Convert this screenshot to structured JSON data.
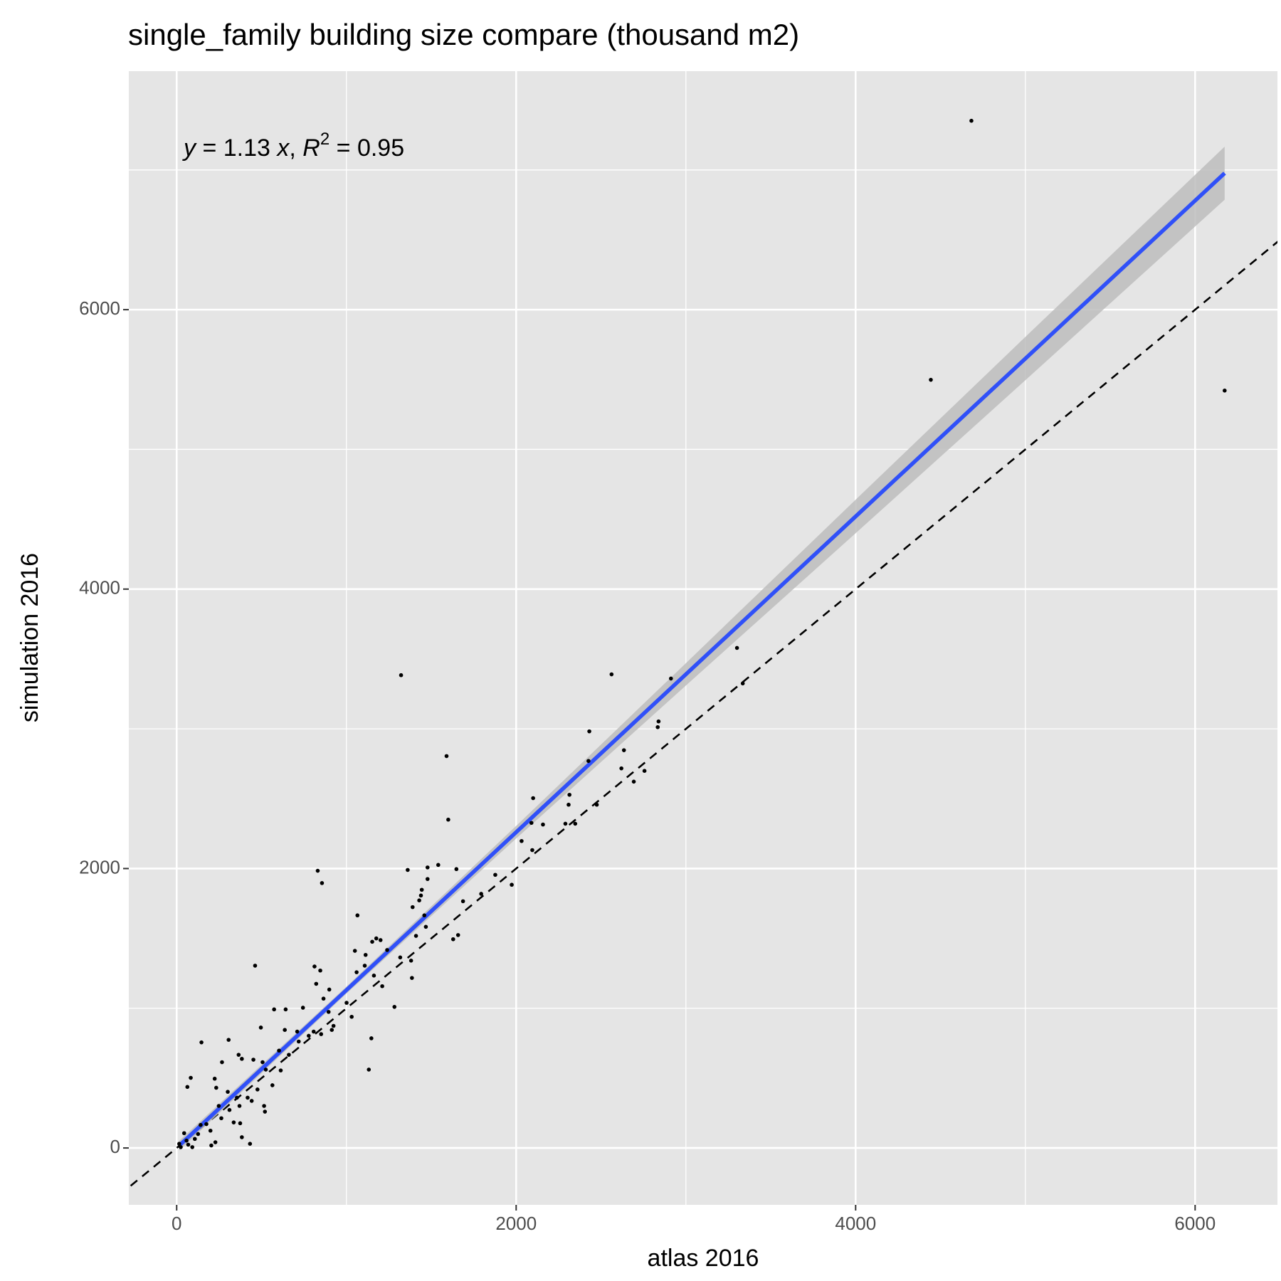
{
  "chart_data": {
    "type": "scatter",
    "title": "single_family building size compare (thousand m2)",
    "x_label": "atlas 2016",
    "y_label": "simulation 2016",
    "annotation": [
      "y",
      " = 1.13 ",
      "x",
      ", ",
      "R",
      "2",
      " = 0.95"
    ],
    "xlim": [
      -282,
      6485
    ],
    "ylim": [
      -407,
      7707
    ],
    "xticks": [
      0,
      2000,
      4000,
      6000
    ],
    "yticks": [
      0,
      2000,
      4000,
      6000
    ],
    "grid": true,
    "identity_line": true,
    "point_color": "#000000",
    "fit_color": "#3050f8",
    "band_color": "#bdbdbd",
    "x": [
      4682,
      4443,
      6174,
      3301,
      1322,
      2562,
      2912,
      3335,
      1590,
      2431,
      2839,
      2834,
      2426,
      2635,
      2620,
      2756,
      2693,
      2100,
      2314,
      2309,
      2475,
      2090,
      2158,
      2290,
      2348,
      2095,
      2032,
      1600,
      1877,
      1974,
      1361,
      1478,
      1541,
      1648,
      1478,
      1444,
      1439,
      1429,
      1390,
      1687,
      1794,
      1459,
      1468,
      1410,
      1658,
      1629,
      831,
      856,
      1065,
      1176,
      1201,
      1152,
      1050,
      1113,
      1240,
      1317,
      1381,
      1108,
      1060,
      1162,
      1211,
      1386,
      812,
      846,
      822,
      899,
      865,
      1001,
      744,
      1283,
      462,
      574,
      642,
      496,
      637,
      914,
      807,
      851,
      710,
      1147,
      1132,
      146,
      306,
      267,
      365,
      384,
      452,
      506,
      525,
      613,
      603,
      661,
      83,
      63,
      224,
      233,
      301,
      355,
      370,
      476,
      442,
      520,
      515,
      336,
      374,
      384,
      432,
      204,
      228,
      126,
      107,
      92,
      44,
      68,
      175,
      141,
      199,
      263,
      311,
      248,
      418,
      564,
      719,
      778,
      924,
      1031,
      895,
      15,
      24,
      58
    ],
    "y": [
      7352,
      5498,
      5421,
      3579,
      3384,
      3390,
      3360,
      3325,
      2805,
      2982,
      3053,
      3012,
      2770,
      2847,
      2717,
      2699,
      2622,
      2504,
      2528,
      2457,
      2457,
      2327,
      2315,
      2321,
      2321,
      2132,
      2197,
      2350,
      1955,
      1884,
      1990,
      2008,
      2026,
      1996,
      1925,
      1848,
      1807,
      1772,
      1724,
      1766,
      1819,
      1665,
      1583,
      1518,
      1524,
      1494,
      1984,
      1896,
      1665,
      1500,
      1488,
      1476,
      1411,
      1382,
      1417,
      1364,
      1341,
      1305,
      1258,
      1234,
      1158,
      1217,
      1299,
      1270,
      1175,
      1134,
      1069,
      1039,
      1004,
      1010,
      1305,
      992,
      992,
      862,
      845,
      845,
      833,
      815,
      833,
      785,
      561,
      756,
      774,
      614,
      667,
      638,
      632,
      614,
      561,
      555,
      697,
      667,
      502,
      437,
      496,
      431,
      402,
      360,
      301,
      419,
      337,
      260,
      301,
      183,
      177,
      77,
      30,
      18,
      41,
      100,
      65,
      6,
      106,
      24,
      171,
      165,
      124,
      213,
      272,
      301,
      360,
      449,
      762,
      803,
      874,
      939,
      974,
      30,
      6,
      53
    ],
    "fit": {
      "x": [
        15,
        1000,
        2000,
        3000,
        4000,
        5000,
        6174
      ],
      "y": [
        17,
        1130,
        2260,
        3390,
        4520,
        5650,
        6977
      ],
      "lower": [
        -18,
        1105,
        2215,
        3310,
        4400,
        5495,
        6787
      ],
      "upper": [
        52,
        1155,
        2305,
        3470,
        4640,
        5805,
        7167
      ]
    }
  }
}
